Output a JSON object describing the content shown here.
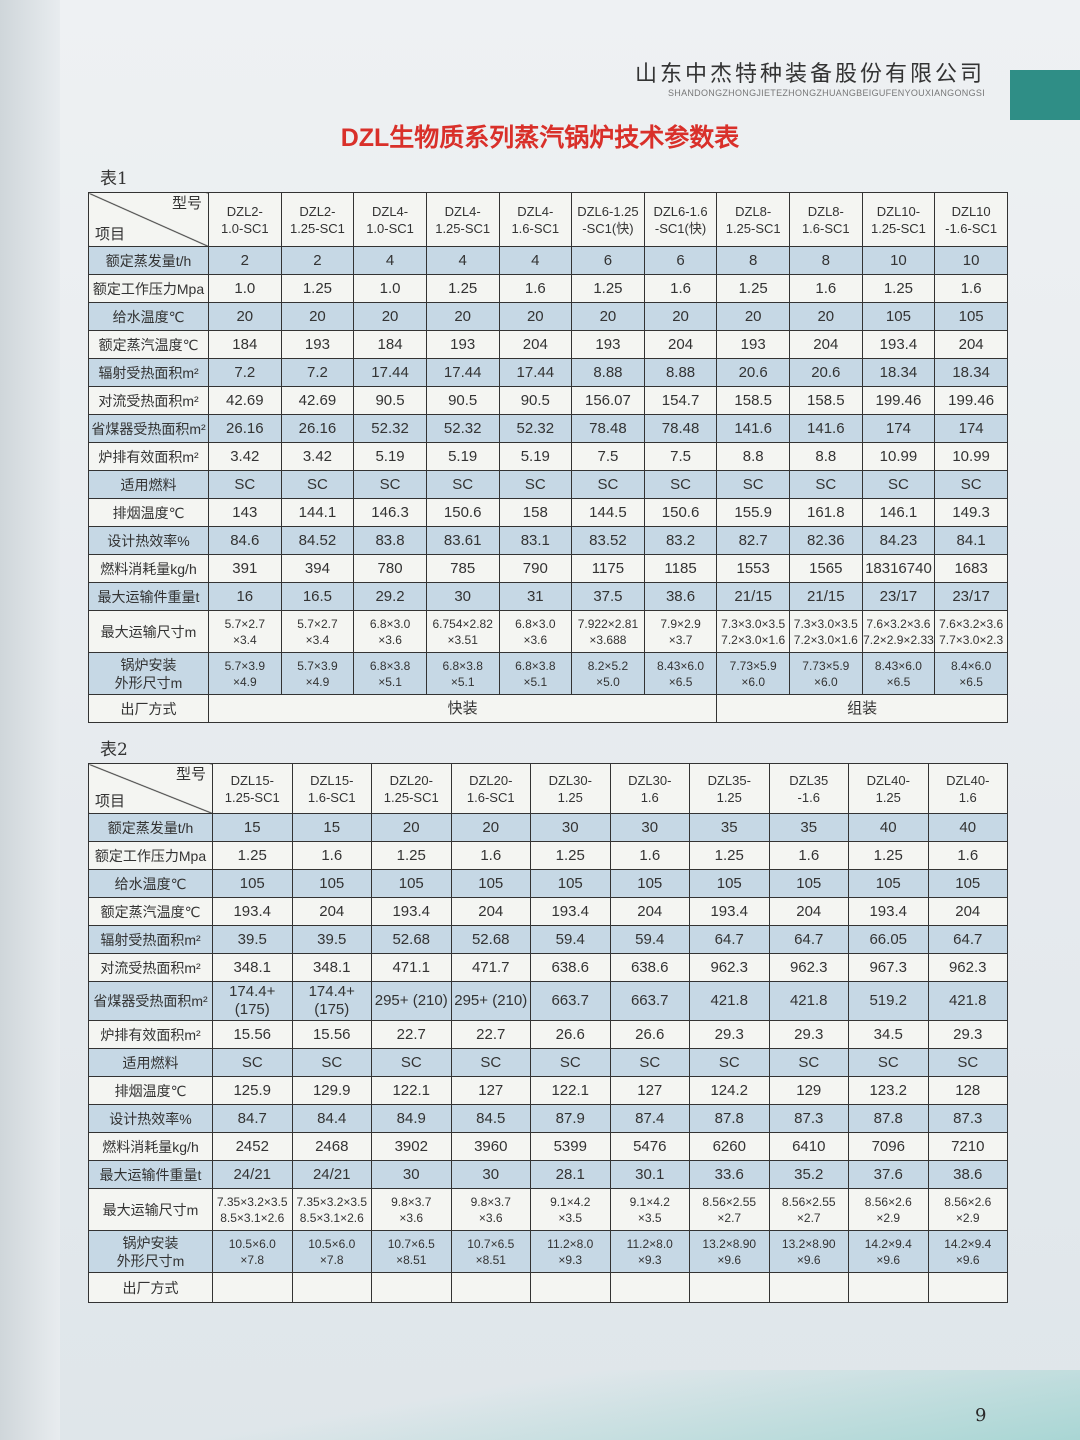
{
  "header": {
    "company_cn": "山东中杰特种装备股份有限公司",
    "company_pinyin": "SHANDONGZHONGJIETEZHONGZHUANGBEIGUFENYOUXIANGONGSI"
  },
  "title": "DZL生物质系列蒸汽锅炉技术参数表",
  "page_number": "9",
  "colors": {
    "title": "#d9302a",
    "row_blue": "#c6d8e5",
    "accent": "#2f8e86"
  },
  "table1": {
    "label": "表1",
    "corner_top": "型号",
    "corner_bottom": "项目",
    "columns": [
      "DZL2-\n1.0-SC1",
      "DZL2-\n1.25-SC1",
      "DZL4-\n1.0-SC1",
      "DZL4-\n1.25-SC1",
      "DZL4-\n1.6-SC1",
      "DZL6-1.25\n-SC1(快)",
      "DZL6-1.6\n-SC1(快)",
      "DZL8-\n1.25-SC1",
      "DZL8-\n1.6-SC1",
      "DZL10-\n1.25-SC1",
      "DZL10\n-1.6-SC1"
    ],
    "rows": [
      {
        "label": "额定蒸发量t/h",
        "values": [
          "2",
          "2",
          "4",
          "4",
          "4",
          "6",
          "6",
          "8",
          "8",
          "10",
          "10"
        ]
      },
      {
        "label": "额定工作压力Mpa",
        "values": [
          "1.0",
          "1.25",
          "1.0",
          "1.25",
          "1.6",
          "1.25",
          "1.6",
          "1.25",
          "1.6",
          "1.25",
          "1.6"
        ]
      },
      {
        "label": "给水温度℃",
        "values": [
          "20",
          "20",
          "20",
          "20",
          "20",
          "20",
          "20",
          "20",
          "20",
          "105",
          "105"
        ]
      },
      {
        "label": "额定蒸汽温度℃",
        "values": [
          "184",
          "193",
          "184",
          "193",
          "204",
          "193",
          "204",
          "193",
          "204",
          "193.4",
          "204"
        ]
      },
      {
        "label": "辐射受热面积m²",
        "values": [
          "7.2",
          "7.2",
          "17.44",
          "17.44",
          "17.44",
          "8.88",
          "8.88",
          "20.6",
          "20.6",
          "18.34",
          "18.34"
        ]
      },
      {
        "label": "对流受热面积m²",
        "values": [
          "42.69",
          "42.69",
          "90.5",
          "90.5",
          "90.5",
          "156.07",
          "154.7",
          "158.5",
          "158.5",
          "199.46",
          "199.46"
        ]
      },
      {
        "label": "省煤器受热面积m²",
        "values": [
          "26.16",
          "26.16",
          "52.32",
          "52.32",
          "52.32",
          "78.48",
          "78.48",
          "141.6",
          "141.6",
          "174",
          "174"
        ]
      },
      {
        "label": "炉排有效面积m²",
        "values": [
          "3.42",
          "3.42",
          "5.19",
          "5.19",
          "5.19",
          "7.5",
          "7.5",
          "8.8",
          "8.8",
          "10.99",
          "10.99"
        ]
      },
      {
        "label": "适用燃料",
        "values": [
          "SC",
          "SC",
          "SC",
          "SC",
          "SC",
          "SC",
          "SC",
          "SC",
          "SC",
          "SC",
          "SC"
        ]
      },
      {
        "label": "排烟温度℃",
        "values": [
          "143",
          "144.1",
          "146.3",
          "150.6",
          "158",
          "144.5",
          "150.6",
          "155.9",
          "161.8",
          "146.1",
          "149.3"
        ]
      },
      {
        "label": "设计热效率%",
        "values": [
          "84.6",
          "84.52",
          "83.8",
          "83.61",
          "83.1",
          "83.52",
          "83.2",
          "82.7",
          "82.36",
          "84.23",
          "84.1"
        ]
      },
      {
        "label": "燃料消耗量kg/h",
        "values": [
          "391",
          "394",
          "780",
          "785",
          "790",
          "1175",
          "1185",
          "1553",
          "1565",
          "18316740",
          "1683"
        ]
      },
      {
        "label": "最大运输件重量t",
        "values": [
          "16",
          "16.5",
          "29.2",
          "30",
          "31",
          "37.5",
          "38.6",
          "21/15",
          "21/15",
          "23/17",
          "23/17"
        ]
      },
      {
        "label": "最大运输尺寸m",
        "values": [
          "5.7×2.7\n×3.4",
          "5.7×2.7\n×3.4",
          "6.8×3.0\n×3.6",
          "6.754×2.82\n×3.51",
          "6.8×3.0\n×3.6",
          "7.922×2.81\n×3.688",
          "7.9×2.9\n×3.7",
          "7.3×3.0×3.5\n7.2×3.0×1.6",
          "7.3×3.0×3.5\n7.2×3.0×1.6",
          "7.6×3.2×3.6\n7.2×2.9×2.33",
          "7.6×3.2×3.6\n7.7×3.0×2.3"
        ]
      },
      {
        "label": "锅炉安装\n外形尺寸m",
        "values": [
          "5.7×3.9\n×4.9",
          "5.7×3.9\n×4.9",
          "6.8×3.8\n×5.1",
          "6.8×3.8\n×5.1",
          "6.8×3.8\n×5.1",
          "8.2×5.2\n×5.0",
          "8.43×6.0\n×6.5",
          "7.73×5.9\n×6.0",
          "7.73×5.9\n×6.0",
          "8.43×6.0\n×6.5",
          "8.4×6.0\n×6.5"
        ]
      }
    ],
    "delivery": {
      "label": "出厂方式",
      "groups": [
        {
          "text": "快装",
          "span": 7
        },
        {
          "text": "组装",
          "span": 4
        }
      ]
    }
  },
  "table2": {
    "label": "表2",
    "corner_top": "型号",
    "corner_bottom": "项目",
    "columns": [
      "DZL15-\n1.25-SC1",
      "DZL15-\n1.6-SC1",
      "DZL20-\n1.25-SC1",
      "DZL20-\n1.6-SC1",
      "DZL30-\n1.25",
      "DZL30-\n1.6",
      "DZL35-\n1.25",
      "DZL35\n-1.6",
      "DZL40-\n1.25",
      "DZL40-\n1.6"
    ],
    "rows": [
      {
        "label": "额定蒸发量t/h",
        "values": [
          "15",
          "15",
          "20",
          "20",
          "30",
          "30",
          "35",
          "35",
          "40",
          "40"
        ]
      },
      {
        "label": "额定工作压力Mpa",
        "values": [
          "1.25",
          "1.6",
          "1.25",
          "1.6",
          "1.25",
          "1.6",
          "1.25",
          "1.6",
          "1.25",
          "1.6"
        ]
      },
      {
        "label": "给水温度℃",
        "values": [
          "105",
          "105",
          "105",
          "105",
          "105",
          "105",
          "105",
          "105",
          "105",
          "105"
        ]
      },
      {
        "label": "额定蒸汽温度℃",
        "values": [
          "193.4",
          "204",
          "193.4",
          "204",
          "193.4",
          "204",
          "193.4",
          "204",
          "193.4",
          "204"
        ]
      },
      {
        "label": "辐射受热面积m²",
        "values": [
          "39.5",
          "39.5",
          "52.68",
          "52.68",
          "59.4",
          "59.4",
          "64.7",
          "64.7",
          "66.05",
          "64.7"
        ]
      },
      {
        "label": "对流受热面积m²",
        "values": [
          "348.1",
          "348.1",
          "471.1",
          "471.7",
          "638.6",
          "638.6",
          "962.3",
          "962.3",
          "967.3",
          "962.3"
        ]
      },
      {
        "label": "省煤器受热面积m²",
        "values": [
          "174.4+ (175)",
          "174.4+ (175)",
          "295+ (210)",
          "295+ (210)",
          "663.7",
          "663.7",
          "421.8",
          "421.8",
          "519.2",
          "421.8"
        ]
      },
      {
        "label": "炉排有效面积m²",
        "values": [
          "15.56",
          "15.56",
          "22.7",
          "22.7",
          "26.6",
          "26.6",
          "29.3",
          "29.3",
          "34.5",
          "29.3"
        ]
      },
      {
        "label": "适用燃料",
        "values": [
          "SC",
          "SC",
          "SC",
          "SC",
          "SC",
          "SC",
          "SC",
          "SC",
          "SC",
          "SC"
        ]
      },
      {
        "label": "排烟温度℃",
        "values": [
          "125.9",
          "129.9",
          "122.1",
          "127",
          "122.1",
          "127",
          "124.2",
          "129",
          "123.2",
          "128"
        ]
      },
      {
        "label": "设计热效率%",
        "values": [
          "84.7",
          "84.4",
          "84.9",
          "84.5",
          "87.9",
          "87.4",
          "87.8",
          "87.3",
          "87.8",
          "87.3"
        ]
      },
      {
        "label": "燃料消耗量kg/h",
        "values": [
          "2452",
          "2468",
          "3902",
          "3960",
          "5399",
          "5476",
          "6260",
          "6410",
          "7096",
          "7210"
        ]
      },
      {
        "label": "最大运输件重量t",
        "values": [
          "24/21",
          "24/21",
          "30",
          "30",
          "28.1",
          "30.1",
          "33.6",
          "35.2",
          "37.6",
          "38.6"
        ]
      },
      {
        "label": "最大运输尺寸m",
        "values": [
          "7.35×3.2×3.5\n8.5×3.1×2.6",
          "7.35×3.2×3.5\n8.5×3.1×2.6",
          "9.8×3.7\n×3.6",
          "9.8×3.7\n×3.6",
          "9.1×4.2\n×3.5",
          "9.1×4.2\n×3.5",
          "8.56×2.55\n×2.7",
          "8.56×2.55\n×2.7",
          "8.56×2.6\n×2.9",
          "8.56×2.6\n×2.9"
        ]
      },
      {
        "label": "锅炉安装\n外形尺寸m",
        "values": [
          "10.5×6.0\n×7.8",
          "10.5×6.0\n×7.8",
          "10.7×6.5\n×8.51",
          "10.7×6.5\n×8.51",
          "11.2×8.0\n×9.3",
          "11.2×8.0\n×9.3",
          "13.2×8.90\n×9.6",
          "13.2×8.90\n×9.6",
          "14.2×9.4\n×9.6",
          "14.2×9.4\n×9.6"
        ]
      }
    ],
    "delivery": {
      "label": "出厂方式",
      "groups": []
    }
  }
}
